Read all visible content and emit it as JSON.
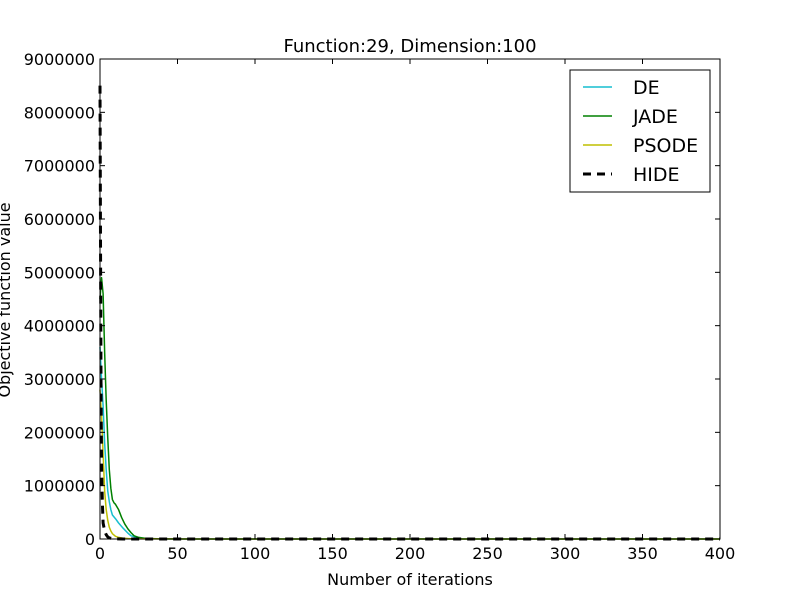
{
  "chart_data": {
    "type": "line",
    "title": "Function:29, Dimension:100",
    "xlabel": "Number of iterations",
    "ylabel": "Objective function value",
    "xlim": [
      0,
      400
    ],
    "ylim": [
      0,
      9000000
    ],
    "xticks": [
      0,
      50,
      100,
      150,
      200,
      250,
      300,
      350,
      400
    ],
    "yticks": [
      0,
      1000000,
      2000000,
      3000000,
      4000000,
      5000000,
      6000000,
      7000000,
      8000000,
      9000000
    ],
    "grid": false,
    "legend_position": "top-right",
    "series": [
      {
        "name": "DE",
        "color": "#17becf",
        "dash": "solid",
        "x": [
          0,
          1,
          2,
          3,
          4,
          5,
          6,
          7,
          8,
          10,
          12,
          15,
          18,
          20,
          25,
          30,
          40,
          60,
          100,
          400
        ],
        "y": [
          3600000,
          3000000,
          2500000,
          1800000,
          1300000,
          900000,
          700000,
          550000,
          450000,
          380000,
          300000,
          200000,
          110000,
          60000,
          20000,
          8000,
          3000,
          1000,
          500,
          200
        ]
      },
      {
        "name": "JADE",
        "color": "#008000",
        "dash": "solid",
        "x": [
          0,
          1,
          2,
          3,
          4,
          5,
          6,
          7,
          8,
          9,
          10,
          12,
          14,
          16,
          18,
          20,
          22,
          25,
          30,
          40,
          60,
          100,
          400
        ],
        "y": [
          4500000,
          4900000,
          4600000,
          3500000,
          2600000,
          1900000,
          1300000,
          950000,
          740000,
          680000,
          650000,
          550000,
          400000,
          280000,
          190000,
          120000,
          60000,
          30000,
          10000,
          3000,
          1000,
          500,
          200
        ]
      },
      {
        "name": "PSODE",
        "color": "#bfbf00",
        "dash": "solid",
        "x": [
          0,
          1,
          2,
          3,
          4,
          5,
          6,
          7,
          8,
          10,
          12,
          15,
          20,
          30,
          60,
          100,
          400
        ],
        "y": [
          2800000,
          2300000,
          1600000,
          900000,
          550000,
          350000,
          220000,
          150000,
          100000,
          50000,
          30000,
          15000,
          5000,
          2000,
          800,
          400,
          200
        ]
      },
      {
        "name": "HIDE",
        "color": "#000000",
        "dash": "dashed",
        "x": [
          0,
          0.3,
          0.7,
          1,
          1.5,
          2,
          3,
          4,
          5,
          6,
          8,
          10,
          15,
          20,
          40,
          100,
          400
        ],
        "y": [
          8500000,
          5800000,
          2600000,
          1400000,
          700000,
          300000,
          150000,
          80000,
          40000,
          20000,
          8000,
          3000,
          1000,
          500,
          200,
          100,
          50
        ]
      }
    ]
  }
}
